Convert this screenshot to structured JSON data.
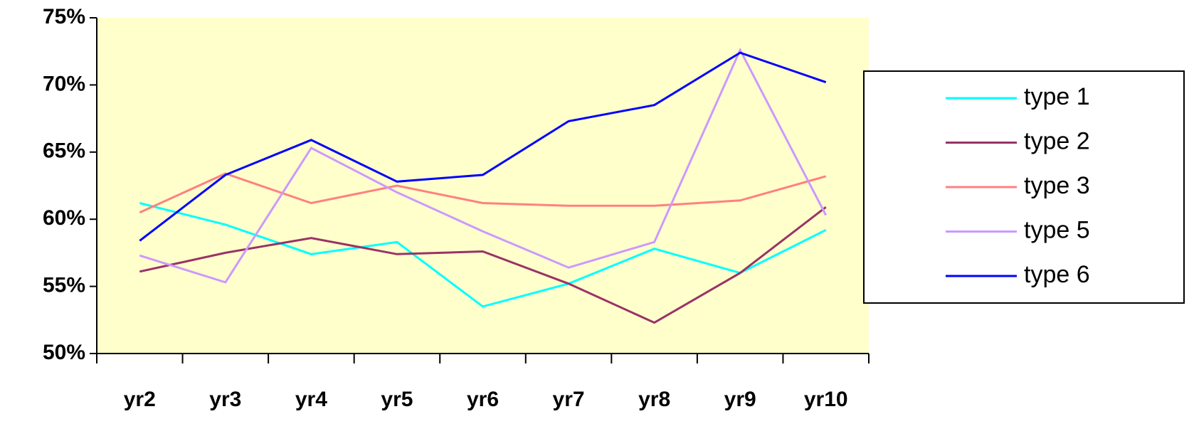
{
  "chart_data": {
    "type": "line",
    "categories": [
      "yr2",
      "yr3",
      "yr4",
      "yr5",
      "yr6",
      "yr7",
      "yr8",
      "yr9",
      "yr10"
    ],
    "series": [
      {
        "name": "type 1",
        "color": "#00ffff",
        "values": [
          61.2,
          59.6,
          57.4,
          58.3,
          53.5,
          55.2,
          57.8,
          56.0,
          59.2
        ]
      },
      {
        "name": "type 2",
        "color": "#993366",
        "values": [
          56.1,
          57.5,
          58.6,
          57.4,
          57.6,
          55.2,
          52.3,
          56.0,
          60.9
        ]
      },
      {
        "name": "type 3",
        "color": "#ff8080",
        "values": [
          60.5,
          63.4,
          61.2,
          62.5,
          61.2,
          61.0,
          61.0,
          61.4,
          63.2
        ]
      },
      {
        "name": "type 5",
        "color": "#cc99ff",
        "values": [
          57.3,
          55.3,
          65.3,
          62.0,
          59.1,
          56.4,
          58.3,
          72.6,
          60.3
        ]
      },
      {
        "name": "type 6",
        "color": "#0000ff",
        "values": [
          58.4,
          63.3,
          65.9,
          62.8,
          63.3,
          67.3,
          68.5,
          72.4,
          70.2
        ]
      }
    ],
    "ylim": [
      50,
      75
    ],
    "yticks": [
      {
        "value": 50,
        "label": "50%"
      },
      {
        "value": 55,
        "label": "55%"
      },
      {
        "value": 60,
        "label": "60%"
      },
      {
        "value": 65,
        "label": "65%"
      },
      {
        "value": 70,
        "label": "70%"
      },
      {
        "value": 75,
        "label": "75%"
      }
    ],
    "plot_background": "#ffffcc",
    "legend": "right"
  }
}
